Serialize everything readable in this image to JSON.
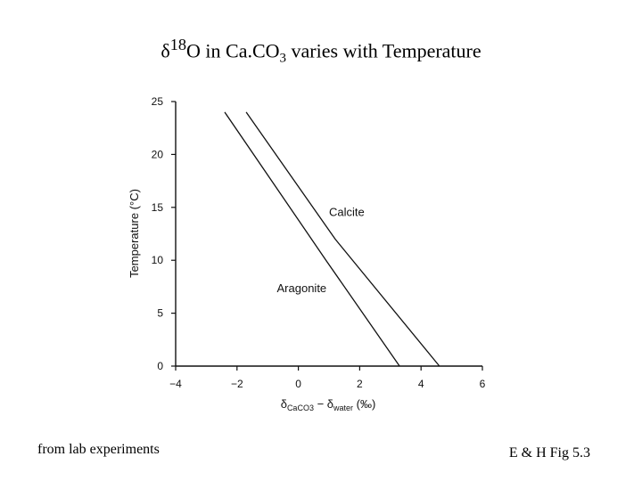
{
  "title": {
    "delta_symbol": "δ",
    "superscript": "18",
    "pre": "O in Ca.CO",
    "subscript": "3",
    "post": " varies with Temperature"
  },
  "footer": {
    "left": "from lab experiments",
    "right": "E & H Fig 5.3"
  },
  "chart_data": {
    "type": "line",
    "title": "δ18O in Ca.CO3 varies with Temperature",
    "ylabel": "Temperature (°C)",
    "xlabel": "δCaCO3 − δwater (‰)",
    "xlabel_parts": {
      "delta": "δ",
      "sub1": "CaCO3",
      "minus": " − δ",
      "sub2": "water",
      "unit": " (‰)"
    },
    "xlim": [
      -4,
      6
    ],
    "ylim": [
      0,
      25
    ],
    "x_ticks": [
      -4,
      -2,
      0,
      2,
      4,
      6
    ],
    "x_tick_labels": [
      "−4",
      "−2",
      "0",
      "2",
      "4",
      "6"
    ],
    "y_ticks": [
      0,
      5,
      10,
      15,
      20,
      25
    ],
    "y_tick_labels": [
      "0",
      "5",
      "10",
      "15",
      "20",
      "25"
    ],
    "grid": false,
    "series": [
      {
        "name": "Calcite",
        "x": [
          -1.7,
          1.2,
          4.6
        ],
        "y": [
          24,
          12,
          0
        ]
      },
      {
        "name": "Aragonite",
        "x": [
          -2.4,
          0.9,
          3.3
        ],
        "y": [
          24,
          10,
          0
        ]
      }
    ],
    "annotations": [
      {
        "text": "Calcite",
        "x": 1.0,
        "y": 14.2
      },
      {
        "text": "Aragonite",
        "x": -0.7,
        "y": 7.0
      }
    ],
    "line_color": "#111111"
  }
}
